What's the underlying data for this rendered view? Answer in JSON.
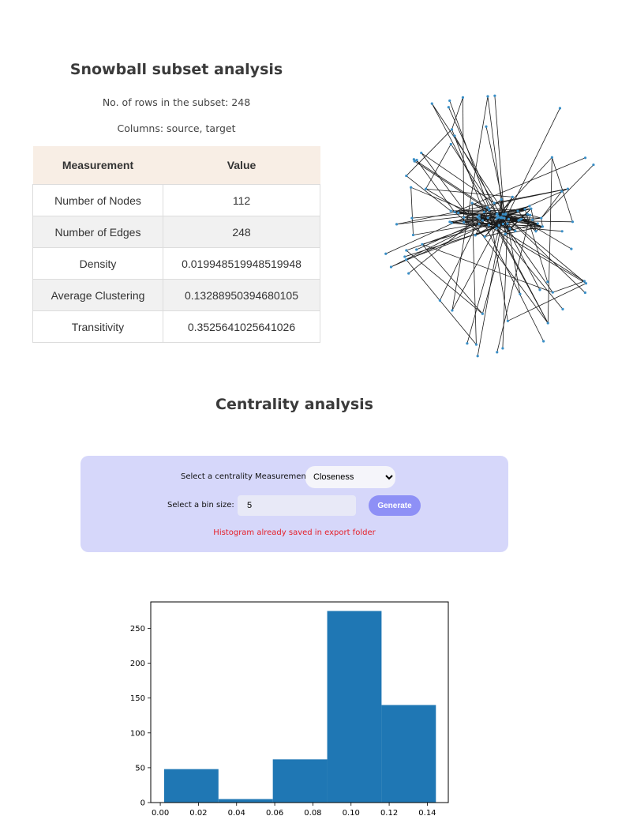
{
  "subset": {
    "title": "Snowball subset analysis",
    "rows_line": "No. of rows in the subset: 248",
    "columns_line": "Columns: source, target"
  },
  "table": {
    "headers": [
      "Measurement",
      "Value"
    ],
    "rows": [
      [
        "Number of Nodes",
        "112"
      ],
      [
        "Number of Edges",
        "248"
      ],
      [
        "Density",
        "0.019948519948519948"
      ],
      [
        "Average Clustering",
        "0.13288950394680105"
      ],
      [
        "Transitivity",
        "0.3525641025641026"
      ]
    ]
  },
  "centrality": {
    "title": "Centrality analysis",
    "measure_label": "Select a centrality Measurement:",
    "measure_selected": "Closeness",
    "bin_label": "Select a bin size:",
    "bin_value": "5",
    "generate_label": "Generate",
    "status_message": "Histogram already saved in export folder"
  },
  "colors": {
    "bar": "#1f77b4",
    "panel": "#d6d7fa",
    "button": "#8e90f6",
    "status": "#e5202a",
    "table_header": "#f8eee5"
  },
  "chart_data": {
    "type": "bar",
    "title": "",
    "xlabel": "",
    "ylabel": "",
    "bins": [
      {
        "x0": 0.002,
        "x1": 0.0305,
        "count": 48
      },
      {
        "x0": 0.0305,
        "x1": 0.059,
        "count": 5
      },
      {
        "x0": 0.059,
        "x1": 0.0875,
        "count": 62
      },
      {
        "x0": 0.0875,
        "x1": 0.116,
        "count": 275
      },
      {
        "x0": 0.116,
        "x1": 0.1445,
        "count": 140
      }
    ],
    "xlim": [
      -0.005,
      0.151
    ],
    "ylim": [
      0,
      288
    ],
    "xticks": [
      "0.00",
      "0.02",
      "0.04",
      "0.06",
      "0.08",
      "0.10",
      "0.12",
      "0.14"
    ],
    "yticks": [
      "0",
      "50",
      "100",
      "150",
      "200",
      "250"
    ],
    "grid": false
  }
}
